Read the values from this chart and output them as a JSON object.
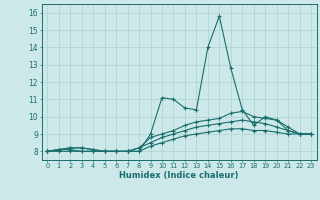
{
  "xlabel": "Humidex (Indice chaleur)",
  "background_color": "#cce8e8",
  "grid_color": "#b0d4d4",
  "line_color": "#1a6e6e",
  "xlim": [
    -0.5,
    23.5
  ],
  "ylim": [
    7.5,
    16.5
  ],
  "yticks": [
    8,
    9,
    10,
    11,
    12,
    13,
    14,
    15,
    16
  ],
  "xticks": [
    0,
    1,
    2,
    3,
    4,
    5,
    6,
    7,
    8,
    9,
    10,
    11,
    12,
    13,
    14,
    15,
    16,
    17,
    18,
    19,
    20,
    21,
    22,
    23
  ],
  "curves": [
    [
      8.0,
      8.1,
      8.2,
      8.2,
      8.1,
      8.0,
      8.0,
      8.0,
      8.0,
      9.0,
      11.1,
      11.0,
      10.5,
      10.4,
      14.0,
      15.8,
      12.8,
      10.4,
      9.5,
      10.0,
      9.8,
      9.2,
      9.0,
      9.0
    ],
    [
      8.0,
      8.1,
      8.2,
      8.2,
      8.1,
      8.0,
      8.0,
      8.0,
      8.2,
      8.8,
      9.0,
      9.2,
      9.5,
      9.7,
      9.8,
      9.9,
      10.2,
      10.3,
      10.0,
      9.9,
      9.8,
      9.4,
      9.0,
      9.0
    ],
    [
      8.0,
      8.1,
      8.1,
      8.0,
      8.0,
      8.0,
      8.0,
      8.0,
      8.2,
      8.5,
      8.8,
      9.0,
      9.2,
      9.4,
      9.5,
      9.6,
      9.7,
      9.8,
      9.7,
      9.6,
      9.4,
      9.2,
      9.0,
      9.0
    ],
    [
      8.0,
      8.0,
      8.0,
      8.0,
      8.0,
      8.0,
      8.0,
      8.0,
      8.0,
      8.3,
      8.5,
      8.7,
      8.9,
      9.0,
      9.1,
      9.2,
      9.3,
      9.3,
      9.2,
      9.2,
      9.1,
      9.0,
      9.0,
      9.0
    ]
  ]
}
